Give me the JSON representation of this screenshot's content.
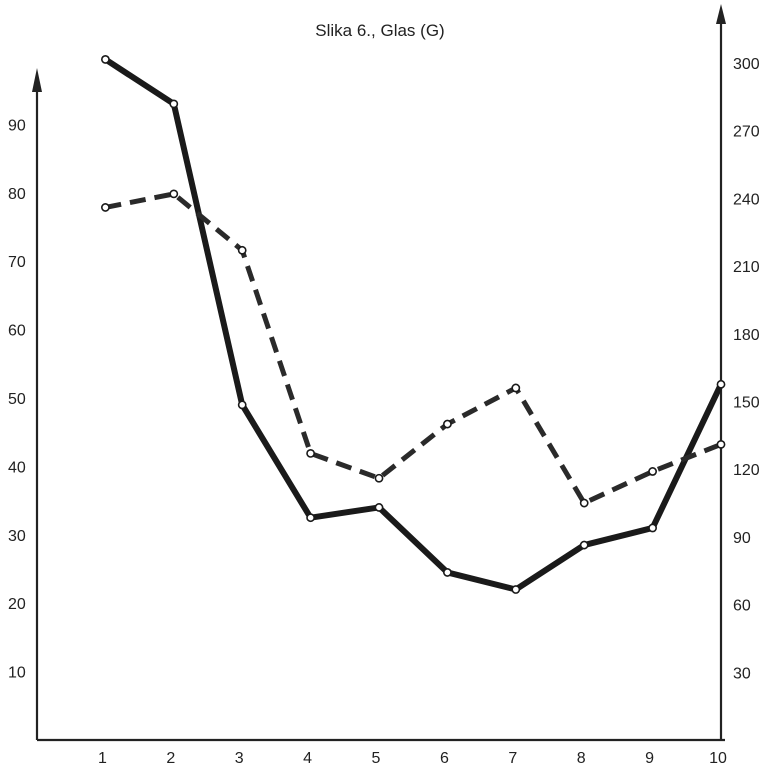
{
  "chart_data": {
    "type": "line",
    "title": "Slika 6., Glas (G)",
    "x": [
      1,
      2,
      3,
      4,
      5,
      6,
      7,
      8,
      9,
      10
    ],
    "xlim": [
      0,
      10
    ],
    "y_left": {
      "ticks": [
        10,
        20,
        30,
        40,
        50,
        60,
        70,
        80,
        90
      ],
      "lim": [
        0,
        100
      ]
    },
    "y_right": {
      "ticks": [
        30,
        60,
        90,
        120,
        150,
        180,
        210,
        240,
        270,
        300
      ],
      "lim": [
        0,
        330
      ]
    },
    "series": [
      {
        "style": "solid",
        "axis": "left",
        "values": [
          99.5,
          93,
          49,
          32.5,
          34,
          24.5,
          22,
          28.5,
          31,
          52
        ]
      },
      {
        "style": "dashed",
        "axis": "right",
        "values": [
          236,
          242,
          217,
          127,
          116,
          140,
          156,
          105,
          119,
          131
        ]
      }
    ],
    "grid": false
  }
}
